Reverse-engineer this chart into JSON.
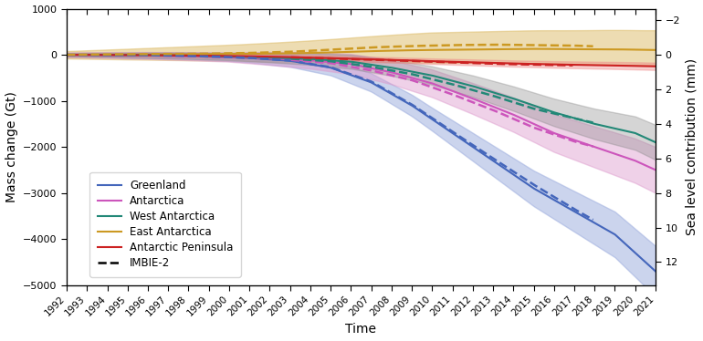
{
  "title": "",
  "xlabel": "Time",
  "ylabel_left": "Mass change (Gt)",
  "ylabel_right": "Sea level contribution (mm)",
  "xlim": [
    1992,
    2021
  ],
  "ylim_left": [
    -5000,
    1000
  ],
  "ylim_right": [
    -2,
    12
  ],
  "yticks_left": [
    -5000,
    -4000,
    -3000,
    -2000,
    -1000,
    0,
    1000
  ],
  "yticks_right": [
    -2,
    0,
    2,
    4,
    6,
    8,
    10,
    12
  ],
  "background_color": "#ffffff",
  "legend_loc": "lower left",
  "series": {
    "greenland": {
      "label": "Greenland",
      "color": "#4466bb",
      "fill_color": "#99aadd",
      "fill_alpha": 0.5,
      "linewidth": 1.5
    },
    "antarctica": {
      "label": "Antarctica",
      "color": "#cc55bb",
      "fill_color": "#dd99cc",
      "fill_alpha": 0.45,
      "linewidth": 1.5
    },
    "west_antarctica": {
      "label": "West Antarctica",
      "color": "#228877",
      "fill_color": "#888888",
      "fill_alpha": 0.35,
      "linewidth": 1.5
    },
    "east_antarctica": {
      "label": "East Antarctica",
      "color": "#cc9922",
      "fill_color": "#ddbb66",
      "fill_alpha": 0.5,
      "linewidth": 1.5
    },
    "antarctic_peninsula": {
      "label": "Antarctic Peninsula",
      "color": "#cc2222",
      "fill_color": "#ee8888",
      "fill_alpha": 0.4,
      "linewidth": 1.5
    },
    "imbie2": {
      "label": "IMBIE-2",
      "color": "#000000",
      "linewidth": 1.8,
      "linestyle": "--"
    }
  }
}
